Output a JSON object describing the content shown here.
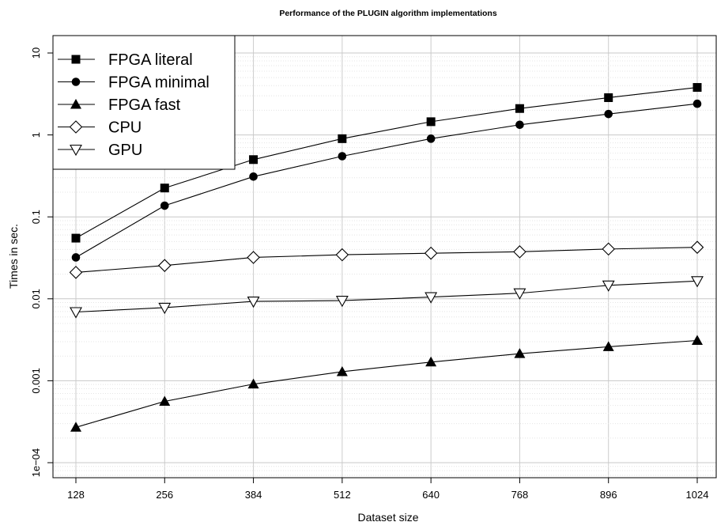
{
  "chart_data": {
    "type": "line",
    "title": "Performance of the PLUGIN algorithm implementations",
    "xlabel": "Dataset size",
    "ylabel": "Times in sec.",
    "x": [
      128,
      256,
      384,
      512,
      640,
      768,
      896,
      1024
    ],
    "x_tick_labels": [
      "128",
      "256",
      "384",
      "512",
      "640",
      "768",
      "896",
      "1024"
    ],
    "y_scale": "log",
    "ylim": [
      5e-05,
      20
    ],
    "y_ticks": [
      0.0001,
      0.001,
      0.01,
      0.1,
      1,
      10
    ],
    "y_tick_labels": [
      "1e−04",
      "0.001",
      "0.01",
      "0.1",
      "1",
      "10"
    ],
    "grid": true,
    "legend_position": "top-left",
    "series": [
      {
        "name": "FPGA literal",
        "marker": "filled-square",
        "values": [
          0.055,
          0.225,
          0.5,
          0.9,
          1.45,
          2.1,
          2.85,
          3.8
        ]
      },
      {
        "name": "FPGA minimal",
        "marker": "filled-circle",
        "values": [
          0.032,
          0.137,
          0.31,
          0.55,
          0.9,
          1.33,
          1.8,
          2.4
        ]
      },
      {
        "name": "FPGA fast",
        "marker": "filled-triangle-up",
        "values": [
          0.00027,
          0.00056,
          0.00091,
          0.00129,
          0.00169,
          0.00214,
          0.0026,
          0.0031
        ]
      },
      {
        "name": "CPU",
        "marker": "open-diamond",
        "values": [
          0.021,
          0.0255,
          0.032,
          0.0345,
          0.036,
          0.0375,
          0.0405,
          0.0425
        ]
      },
      {
        "name": "GPU",
        "marker": "open-triangle-down",
        "values": [
          0.0069,
          0.0078,
          0.0093,
          0.0095,
          0.0105,
          0.0117,
          0.0146,
          0.0165
        ]
      }
    ]
  }
}
